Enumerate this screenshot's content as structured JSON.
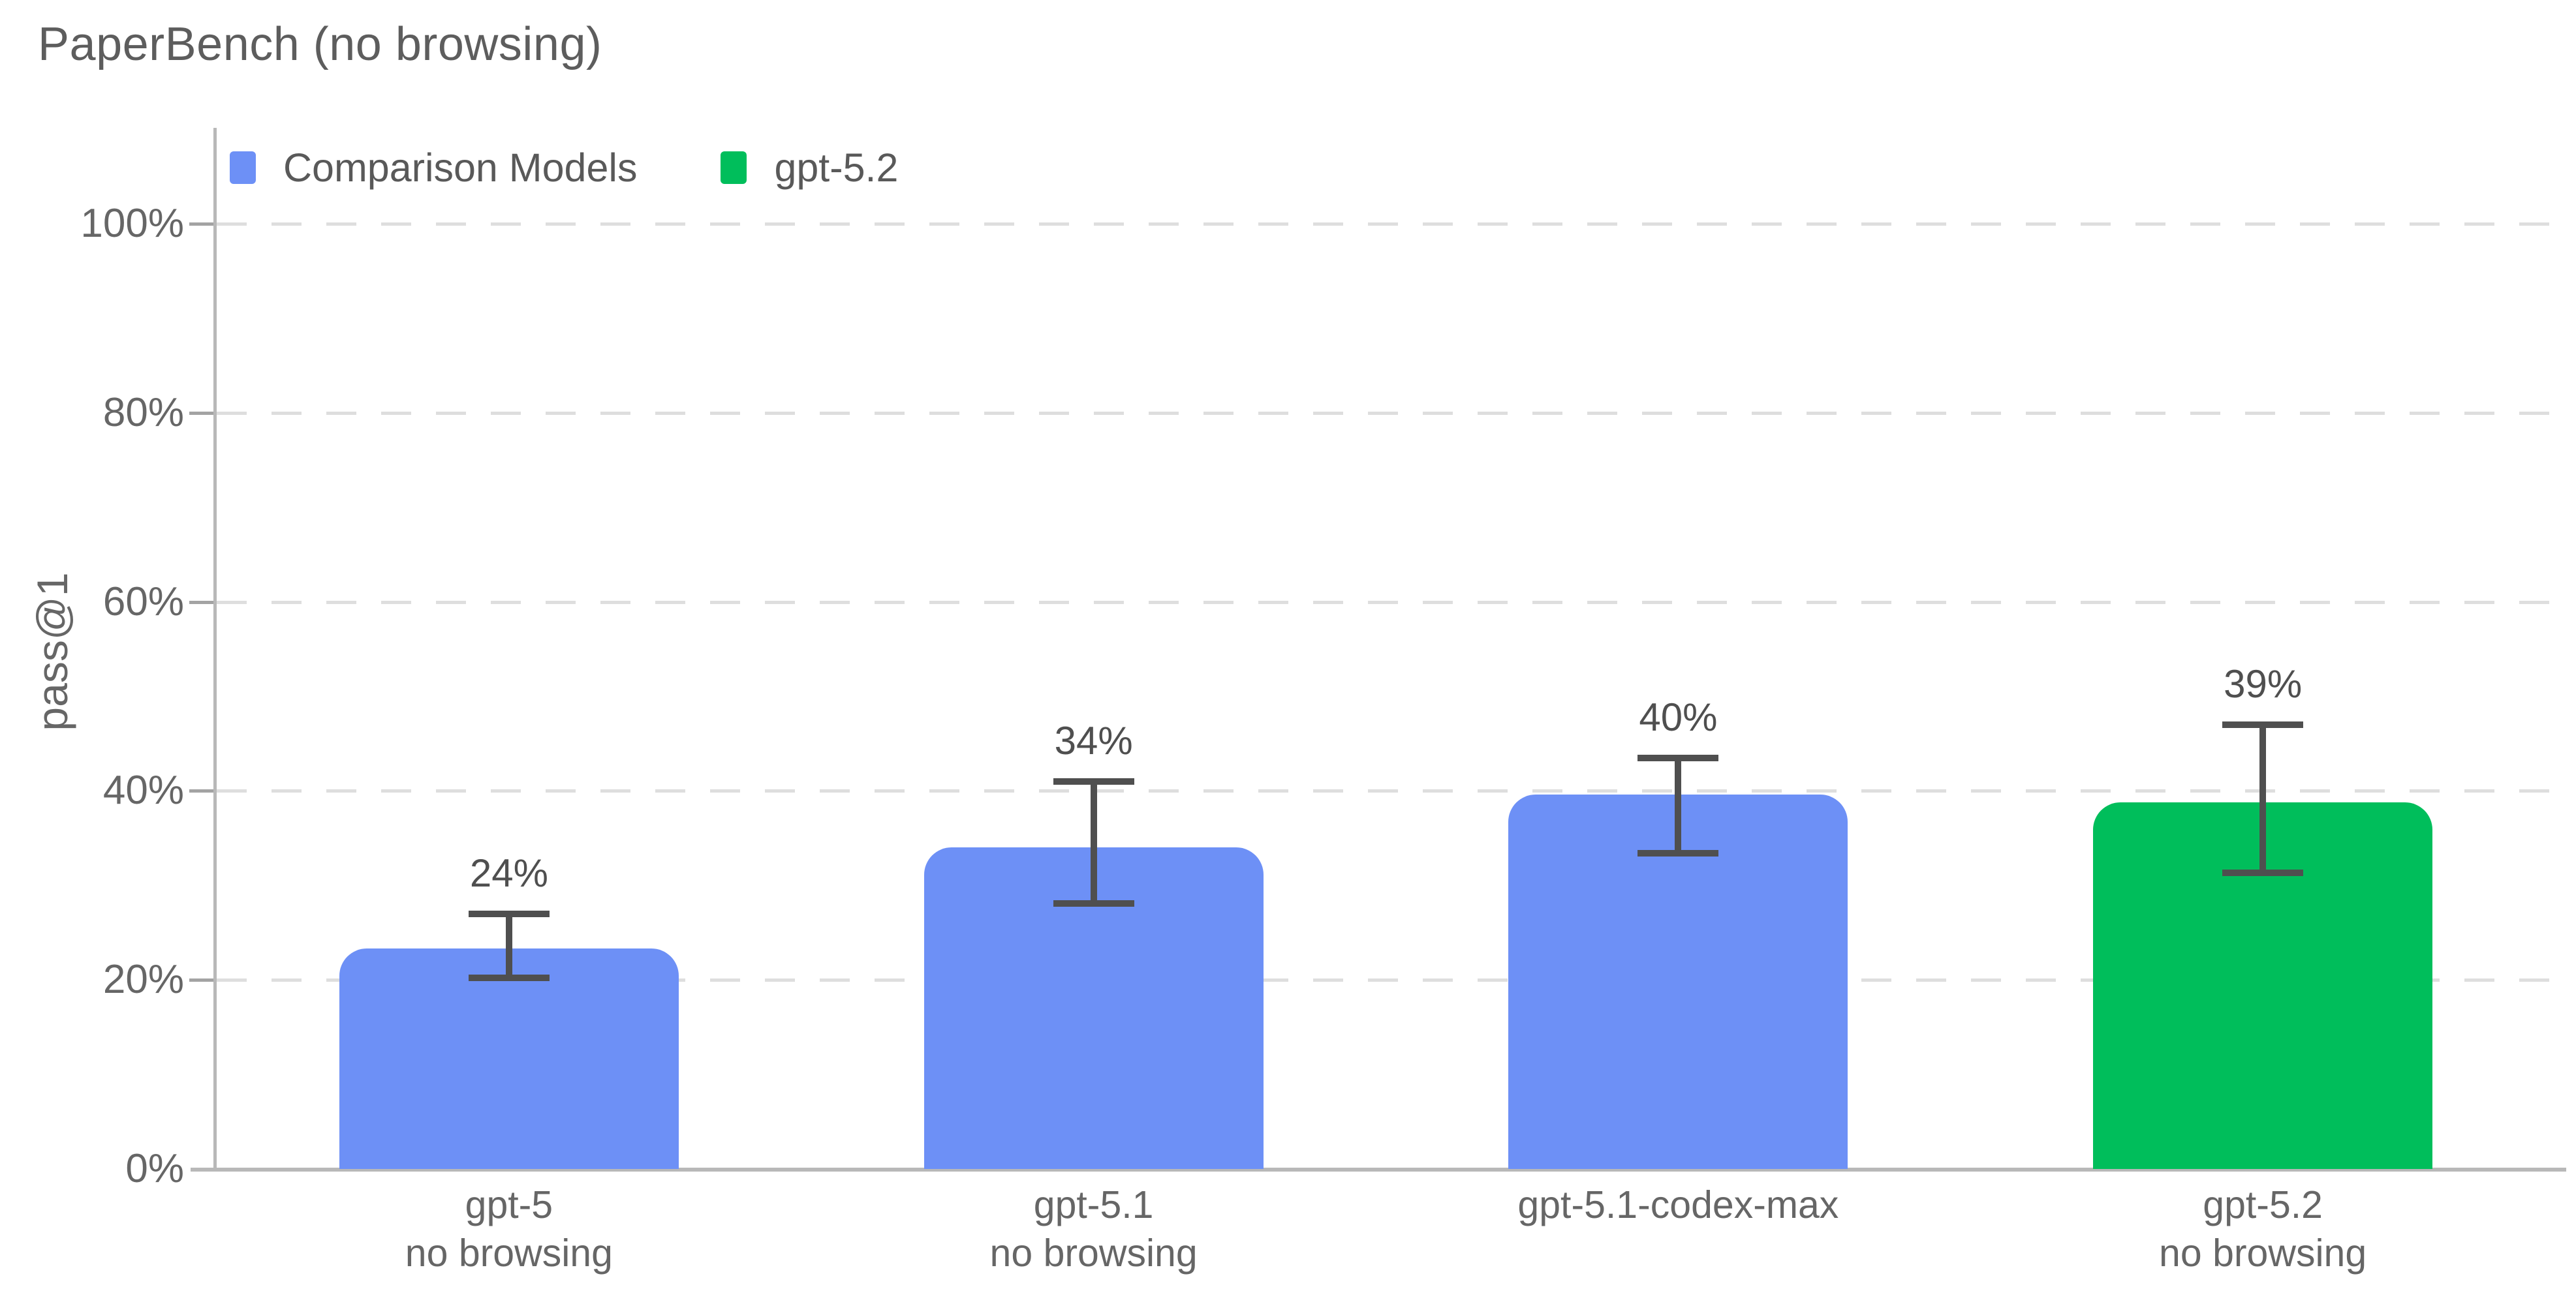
{
  "title": "PaperBench (no browsing)",
  "chart_data": {
    "type": "bar",
    "title": "PaperBench (no browsing)",
    "xlabel": "",
    "ylabel": "pass@1",
    "ylim": [
      0,
      100
    ],
    "grid": "horizontal dashed",
    "legend_position": "top-left inside plot",
    "yticks": [
      {
        "value": 0,
        "label": "0%"
      },
      {
        "value": 20,
        "label": "20%"
      },
      {
        "value": 40,
        "label": "40%"
      },
      {
        "value": 60,
        "label": "60%"
      },
      {
        "value": 80,
        "label": "80%"
      },
      {
        "value": 100,
        "label": "100%"
      }
    ],
    "legend": [
      {
        "label": "Comparison Models",
        "color": "#6D90F6"
      },
      {
        "label": "gpt-5.2",
        "color": "#00BE5B"
      }
    ],
    "categories": [
      "gpt-5\nno browsing",
      "gpt-5.1\nno browsing",
      "gpt-5.1-codex-max",
      "gpt-5.2\nno browsing"
    ],
    "bars": [
      {
        "category_lines": [
          "gpt-5",
          "no browsing"
        ],
        "series": "Comparison Models",
        "value": 24,
        "value_label": "24%",
        "bar_top_pct": 23.3,
        "error_low_pct": 20.2,
        "error_high_pct": 27.0,
        "color": "#6D90F6"
      },
      {
        "category_lines": [
          "gpt-5.1",
          "no browsing"
        ],
        "series": "Comparison Models",
        "value": 34,
        "value_label": "34%",
        "bar_top_pct": 34.0,
        "error_low_pct": 28.1,
        "error_high_pct": 41.0,
        "color": "#6D90F6"
      },
      {
        "category_lines": [
          "gpt-5.1-codex-max"
        ],
        "series": "Comparison Models",
        "value": 40,
        "value_label": "40%",
        "bar_top_pct": 39.6,
        "error_low_pct": 33.4,
        "error_high_pct": 43.5,
        "color": "#6D90F6"
      },
      {
        "category_lines": [
          "gpt-5.2",
          "no browsing"
        ],
        "series": "gpt-5.2",
        "value": 39,
        "value_label": "39%",
        "bar_top_pct": 38.8,
        "error_low_pct": 31.3,
        "error_high_pct": 47.0,
        "color": "#00BE5B"
      }
    ],
    "colors": {
      "comparison_bar": "#6D90F6",
      "highlight_bar": "#00BE5B",
      "error_bar": "#4F4F4F",
      "gridline": "#DEDEDE",
      "axis_line": "#B8B8B8",
      "tick_text": "#666666",
      "title_text": "#5D5D5D"
    }
  }
}
